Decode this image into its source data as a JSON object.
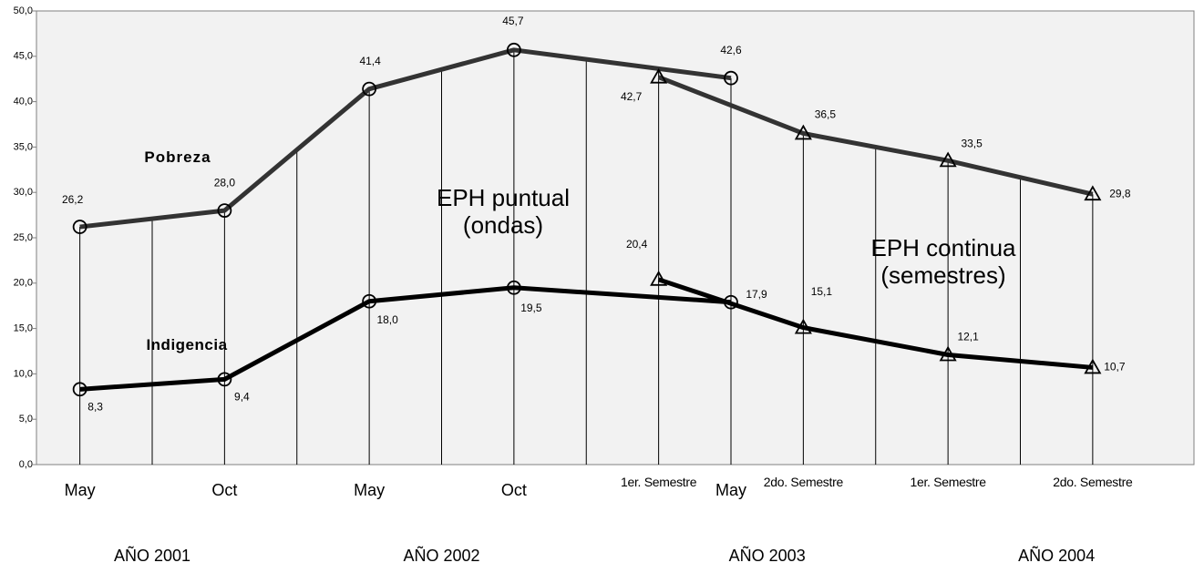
{
  "chart_data": {
    "type": "line",
    "xlim": [
      -0.3,
      7.7
    ],
    "xticks": [
      {
        "value": 0,
        "label": "May"
      },
      {
        "value": 1,
        "label": "Oct"
      },
      {
        "value": 2,
        "label": "May"
      },
      {
        "value": 3,
        "label": "Oct"
      },
      {
        "value": 4,
        "label": "1er. Semestre"
      },
      {
        "value": 4.5,
        "label": "May"
      },
      {
        "value": 5,
        "label": "2do. Semestre"
      },
      {
        "value": 6,
        "label": "1er. Semestre"
      },
      {
        "value": 7,
        "label": "2do. Semestre"
      }
    ],
    "ylim": [
      0,
      50
    ],
    "yticks": [
      {
        "value": 0,
        "label": "0,0"
      },
      {
        "value": 5,
        "label": "5,0"
      },
      {
        "value": 10,
        "label": "10,0"
      },
      {
        "value": 15,
        "label": "15,0"
      },
      {
        "value": 20,
        "label": "20,0"
      },
      {
        "value": 25,
        "label": "25,0"
      },
      {
        "value": 30,
        "label": "30,0"
      },
      {
        "value": 35,
        "label": "35,0"
      },
      {
        "value": 40,
        "label": "40,0"
      },
      {
        "value": 45,
        "label": "45,0"
      },
      {
        "value": 50,
        "label": "50,0"
      }
    ],
    "year_labels": [
      "AÑO 2001",
      "AÑO 2002",
      "AÑO 2003",
      "AÑO 2004"
    ],
    "annotations": [
      "Pobreza",
      "Indigencia",
      "EPH puntual (ondas)",
      "EPH continua (semestres)"
    ],
    "series": [
      {
        "color": "#333333",
        "marker": "circle",
        "x": [
          0,
          1,
          2,
          3,
          4.5
        ],
        "values": [
          26.2,
          28.0,
          41.4,
          45.7,
          42.6
        ],
        "value_labels": [
          "26,2",
          "28,0",
          "41,4",
          "45,7",
          "42,6"
        ]
      },
      {
        "color": "#333333",
        "marker": "triangle",
        "x": [
          4,
          5,
          6,
          7
        ],
        "values": [
          42.7,
          36.5,
          33.5,
          29.8
        ],
        "value_labels": [
          "42,7",
          "36,5",
          "33,5",
          "29,8"
        ]
      },
      {
        "color": "#000000",
        "marker": "circle",
        "x": [
          0,
          1,
          2,
          3,
          4.5
        ],
        "values": [
          8.3,
          9.4,
          18.0,
          19.5,
          17.9
        ],
        "value_labels": [
          "8,3",
          "9,4",
          "18,0",
          "19,5",
          "17,9"
        ]
      },
      {
        "color": "#000000",
        "marker": "triangle",
        "x": [
          4,
          5,
          6,
          7
        ],
        "values": [
          20.4,
          15.1,
          12.1,
          10.7
        ],
        "value_labels": [
          "20,4",
          "15,1",
          "12,1",
          "10,7"
        ]
      }
    ]
  }
}
